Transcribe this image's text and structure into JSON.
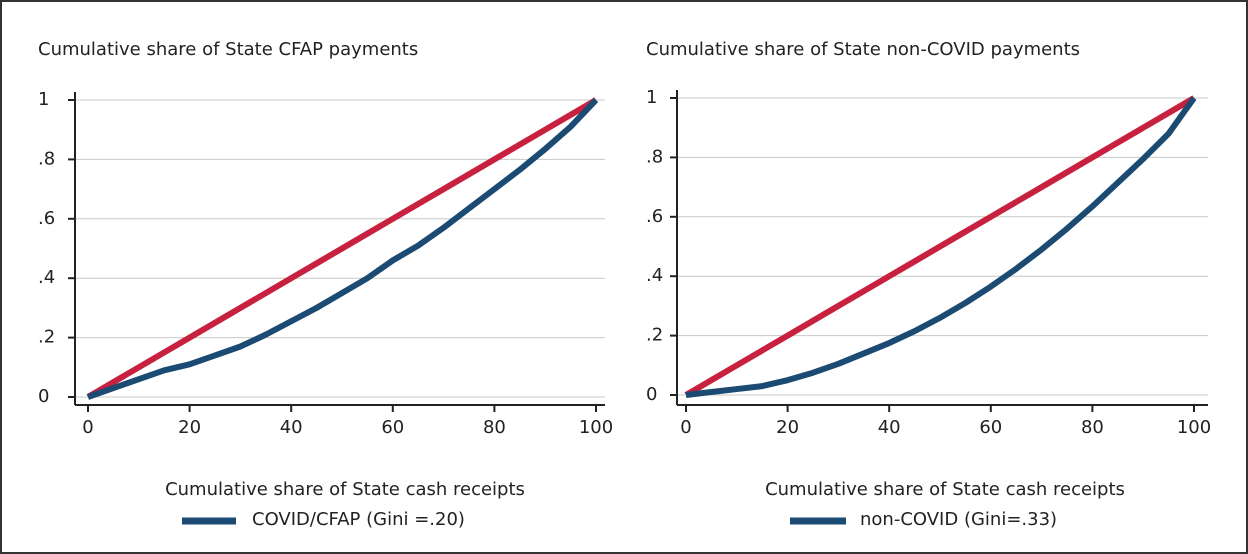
{
  "chart_data": [
    {
      "type": "line",
      "title": "Cumulative share of State CFAP payments",
      "x_label": "Cumulative share of State cash receipts",
      "x": [
        0,
        5,
        10,
        15,
        20,
        25,
        30,
        35,
        40,
        45,
        50,
        55,
        60,
        65,
        70,
        75,
        80,
        85,
        90,
        95,
        100
      ],
      "series": [
        {
          "color": "#c8203f",
          "values": [
            0,
            0.05,
            0.1,
            0.15,
            0.2,
            0.25,
            0.3,
            0.35,
            0.4,
            0.45,
            0.5,
            0.55,
            0.6,
            0.65,
            0.7,
            0.75,
            0.8,
            0.85,
            0.9,
            0.95,
            1
          ]
        },
        {
          "name": "COVID/CFAP (Gini =.20)",
          "color": "#1b4a72",
          "values": [
            0,
            0.03,
            0.06,
            0.09,
            0.11,
            0.14,
            0.17,
            0.21,
            0.255,
            0.3,
            0.35,
            0.4,
            0.46,
            0.51,
            0.57,
            0.635,
            0.7,
            0.765,
            0.835,
            0.91,
            1
          ]
        }
      ],
      "xlim": [
        0,
        100
      ],
      "xticks": [
        0,
        20,
        40,
        60,
        80,
        100
      ],
      "ylim": [
        0,
        1
      ],
      "yticks": [
        0,
        {
          "value": 0.2,
          "label": ".2"
        },
        {
          "value": 0.4,
          "label": ".4"
        },
        {
          "value": 0.6,
          "label": ".6"
        },
        {
          "value": 0.8,
          "label": ".8"
        },
        1
      ],
      "grid": true,
      "legend": "bottom"
    },
    {
      "type": "line",
      "title": "Cumulative share of State non-COVID payments",
      "x_label": "Cumulative share of State cash receipts",
      "x": [
        0,
        5,
        10,
        15,
        20,
        25,
        30,
        35,
        40,
        45,
        50,
        55,
        60,
        65,
        70,
        75,
        80,
        85,
        90,
        95,
        100
      ],
      "series": [
        {
          "color": "#c8203f",
          "values": [
            0,
            0.05,
            0.1,
            0.15,
            0.2,
            0.25,
            0.3,
            0.35,
            0.4,
            0.45,
            0.5,
            0.55,
            0.6,
            0.65,
            0.7,
            0.75,
            0.8,
            0.85,
            0.9,
            0.95,
            1
          ]
        },
        {
          "name": "non-COVID (Gini=.33)",
          "color": "#1b4a72",
          "values": [
            0,
            0.01,
            0.02,
            0.03,
            0.05,
            0.075,
            0.105,
            0.14,
            0.175,
            0.215,
            0.26,
            0.31,
            0.365,
            0.425,
            0.49,
            0.56,
            0.635,
            0.715,
            0.795,
            0.88,
            1
          ]
        }
      ],
      "xlim": [
        0,
        100
      ],
      "xticks": [
        0,
        20,
        40,
        60,
        80,
        100
      ],
      "ylim": [
        0,
        1
      ],
      "yticks": [
        0,
        {
          "value": 0.2,
          "label": ".2"
        },
        {
          "value": 0.4,
          "label": ".4"
        },
        {
          "value": 0.6,
          "label": ".6"
        },
        {
          "value": 0.8,
          "label": ".8"
        },
        1
      ],
      "grid": true,
      "legend": "bottom"
    }
  ]
}
